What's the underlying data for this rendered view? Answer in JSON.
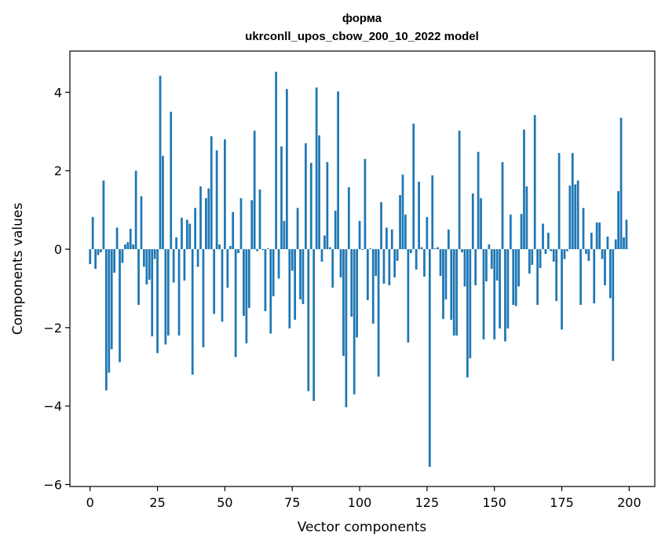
{
  "chart_data": {
    "type": "bar",
    "title": "форма",
    "subtitle": "ukrconll_upos_cbow_200_10_2022 model",
    "xlabel": "Vector components",
    "ylabel": "Components values",
    "xlim": [
      -7.5,
      209.5
    ],
    "ylim": [
      -6.05,
      5.05
    ],
    "xticks": [
      0,
      25,
      50,
      75,
      100,
      125,
      150,
      175,
      200
    ],
    "xtick_labels": [
      "0",
      "25",
      "50",
      "75",
      "100",
      "125",
      "150",
      "175",
      "200"
    ],
    "yticks": [
      4,
      2,
      0,
      -2,
      -4,
      -6
    ],
    "ytick_labels": [
      "4",
      "2",
      "0",
      "−2",
      "−4",
      "−6"
    ],
    "grid": false,
    "bar_color": "#1f77b4",
    "x": [
      0,
      1,
      2,
      3,
      4,
      5,
      6,
      7,
      8,
      9,
      10,
      11,
      12,
      13,
      14,
      15,
      16,
      17,
      18,
      19,
      20,
      21,
      22,
      23,
      24,
      25,
      26,
      27,
      28,
      29,
      30,
      31,
      32,
      33,
      34,
      35,
      36,
      37,
      38,
      39,
      40,
      41,
      42,
      43,
      44,
      45,
      46,
      47,
      48,
      49,
      50,
      51,
      52,
      53,
      54,
      55,
      56,
      57,
      58,
      59,
      60,
      61,
      62,
      63,
      64,
      65,
      66,
      67,
      68,
      69,
      70,
      71,
      72,
      73,
      74,
      75,
      76,
      77,
      78,
      79,
      80,
      81,
      82,
      83,
      84,
      85,
      86,
      87,
      88,
      89,
      90,
      91,
      92,
      93,
      94,
      95,
      96,
      97,
      98,
      99,
      100,
      101,
      102,
      103,
      104,
      105,
      106,
      107,
      108,
      109,
      110,
      111,
      112,
      113,
      114,
      115,
      116,
      117,
      118,
      119,
      120,
      121,
      122,
      123,
      124,
      125,
      126,
      127,
      128,
      129,
      130,
      131,
      132,
      133,
      134,
      135,
      136,
      137,
      138,
      139,
      140,
      141,
      142,
      143,
      144,
      145,
      146,
      147,
      148,
      149,
      150,
      151,
      152,
      153,
      154,
      155,
      156,
      157,
      158,
      159,
      160,
      161,
      162,
      163,
      164,
      165,
      166,
      167,
      168,
      169,
      170,
      171,
      172,
      173,
      174,
      175,
      176,
      177,
      178,
      179,
      180,
      181,
      182,
      183,
      184,
      185,
      186,
      187,
      188,
      189,
      190,
      191,
      192,
      193,
      194,
      195,
      196,
      197,
      198,
      199
    ],
    "values": [
      -0.38,
      0.82,
      -0.5,
      -0.15,
      -0.08,
      1.75,
      -3.6,
      -3.15,
      -2.55,
      -0.6,
      0.55,
      -2.88,
      -0.35,
      0.12,
      0.18,
      0.52,
      0.12,
      2.0,
      -1.42,
      1.35,
      -0.45,
      -0.9,
      -0.78,
      -2.22,
      -0.25,
      -2.65,
      4.42,
      2.38,
      -2.43,
      -2.2,
      3.5,
      -0.85,
      0.3,
      -2.2,
      0.8,
      -0.8,
      0.75,
      0.65,
      -3.2,
      1.05,
      -0.45,
      1.6,
      -2.5,
      1.3,
      1.55,
      2.88,
      -1.65,
      2.52,
      0.12,
      -1.85,
      2.8,
      -0.98,
      0.08,
      0.95,
      -2.75,
      -0.1,
      1.3,
      -1.7,
      -2.4,
      -1.5,
      1.25,
      3.02,
      -0.05,
      1.52,
      -0.02,
      -1.58,
      0.02,
      -2.15,
      -1.2,
      4.52,
      -0.75,
      2.62,
      0.72,
      4.08,
      -2.02,
      -0.55,
      -1.8,
      1.05,
      -1.28,
      -1.4,
      2.7,
      -3.62,
      2.2,
      -3.87,
      4.12,
      2.9,
      -0.32,
      0.35,
      2.22,
      0.05,
      -0.98,
      0.98,
      4.02,
      -0.72,
      -2.72,
      -4.03,
      1.58,
      -1.72,
      -3.7,
      -2.25,
      0.72,
      -0.02,
      2.3,
      -1.3,
      0.02,
      -1.9,
      -0.68,
      -3.25,
      1.2,
      -0.88,
      0.55,
      -0.92,
      0.5,
      -0.72,
      -0.3,
      1.38,
      1.9,
      0.88,
      -2.38,
      -0.1,
      3.2,
      -0.52,
      1.72,
      0.05,
      -0.7,
      0.82,
      -5.55,
      1.88,
      0.02,
      0.05,
      -0.68,
      -1.78,
      -1.28,
      0.5,
      -1.8,
      -2.2,
      -2.2,
      3.02,
      -0.08,
      -0.95,
      -3.27,
      -2.78,
      1.42,
      -0.92,
      2.48,
      1.3,
      -2.3,
      -0.82,
      0.12,
      -0.5,
      -2.3,
      -0.8,
      -2.02,
      2.22,
      -2.35,
      -2.02,
      0.88,
      -1.42,
      -1.45,
      -0.95,
      0.9,
      3.05,
      1.6,
      -0.62,
      -0.4,
      3.42,
      -1.42,
      -0.48,
      0.65,
      -0.12,
      0.42,
      -0.05,
      -0.32,
      -1.32,
      2.45,
      -2.05,
      -0.25,
      -0.05,
      1.62,
      2.45,
      1.65,
      1.75,
      -1.42,
      1.05,
      -0.12,
      -0.3,
      0.42,
      -1.38,
      0.68,
      0.68,
      -0.25,
      -0.92,
      0.32,
      -1.25,
      -2.85,
      0.25,
      1.48,
      3.35,
      0.3,
      0.75
    ]
  }
}
